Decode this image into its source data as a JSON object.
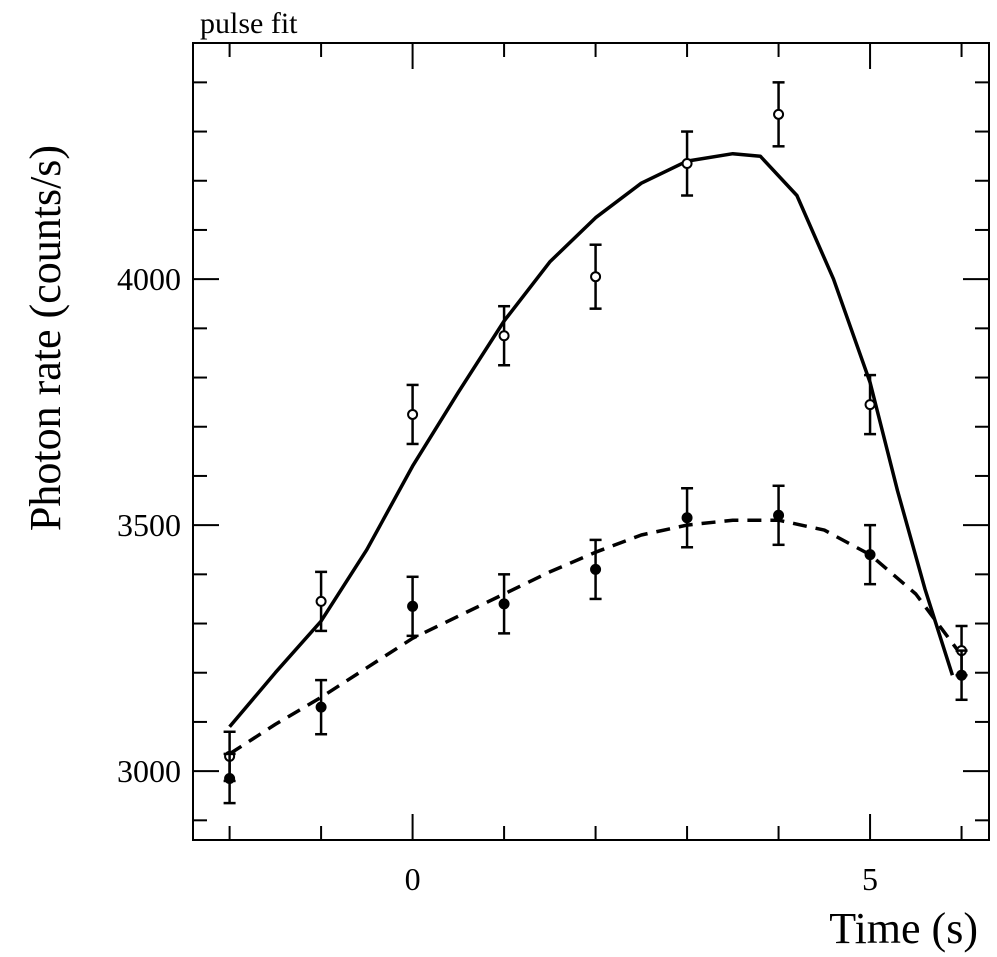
{
  "chart_data": {
    "type": "scatter",
    "title": "pulse fit",
    "xlabel": "Time (s)",
    "ylabel": "Photon rate (counts/s)",
    "xlim": [
      -2.4,
      6.3
    ],
    "ylim": [
      2860,
      4480
    ],
    "x_major_ticks": [
      0,
      5
    ],
    "x_minor_ticks": [
      -2,
      -1,
      1,
      2,
      3,
      4,
      6
    ],
    "y_major_ticks": [
      3000,
      3500,
      4000
    ],
    "y_minor_ticks": [
      2900,
      3100,
      3200,
      3300,
      3400,
      3600,
      3700,
      3800,
      3900,
      4100,
      4200,
      4300,
      4400
    ],
    "grid": false,
    "legend": "none",
    "series": [
      {
        "marker": "open-circle",
        "x": [
          -2,
          -1,
          0,
          1,
          2,
          3,
          4,
          5,
          6
        ],
        "y": [
          3030,
          3345,
          3725,
          3885,
          4005,
          4235,
          4335,
          3745,
          3245
        ],
        "yerr": [
          50,
          60,
          60,
          60,
          65,
          65,
          65,
          60,
          50
        ]
      },
      {
        "marker": "filled-circle",
        "x": [
          -2,
          -1,
          0,
          1,
          2,
          3,
          4,
          5,
          6
        ],
        "y": [
          2985,
          3130,
          3335,
          3340,
          3410,
          3515,
          3520,
          3440,
          3195
        ],
        "yerr": [
          50,
          55,
          60,
          60,
          60,
          60,
          60,
          60,
          50
        ]
      },
      {
        "style": "solid-line",
        "x": [
          -2,
          -1.5,
          -1,
          -0.5,
          0,
          0.5,
          1,
          1.5,
          2,
          2.5,
          3,
          3.5,
          3.8,
          4.2,
          4.6,
          5,
          5.3,
          5.6,
          5.9
        ],
        "y": [
          3090,
          3200,
          3305,
          3450,
          3620,
          3770,
          3915,
          4035,
          4125,
          4195,
          4240,
          4255,
          4250,
          4170,
          4000,
          3790,
          3570,
          3370,
          3195
        ]
      },
      {
        "style": "dashed-line",
        "x": [
          -2,
          -1.5,
          -1,
          -0.5,
          0,
          0.5,
          1,
          1.5,
          2,
          2.5,
          3,
          3.5,
          4,
          4.5,
          5,
          5.5,
          6
        ],
        "y": [
          3035,
          3095,
          3150,
          3210,
          3270,
          3315,
          3360,
          3405,
          3445,
          3480,
          3500,
          3510,
          3510,
          3490,
          3440,
          3360,
          3235
        ]
      }
    ]
  }
}
